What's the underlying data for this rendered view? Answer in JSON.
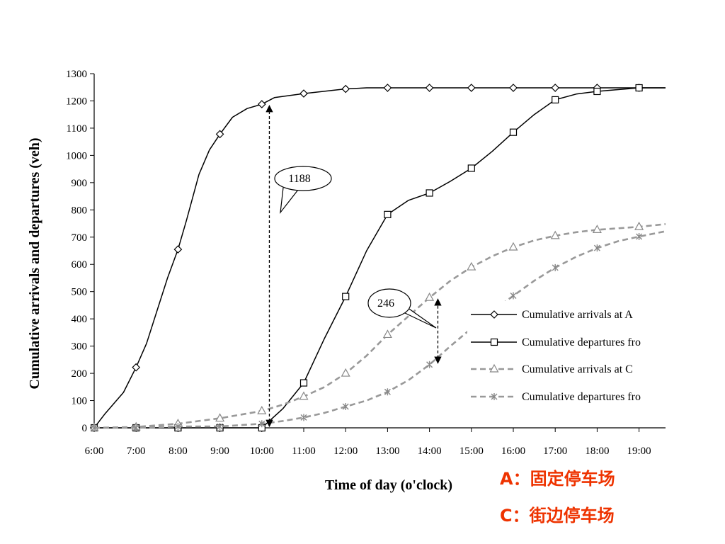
{
  "chart_data": {
    "type": "line",
    "title": "",
    "xlabel": "Time of day (o'clock)",
    "ylabel": "Cumulative arrivals and departures (veh)",
    "x": [
      "6:00",
      "7:00",
      "8:00",
      "9:00",
      "10:00",
      "11:00",
      "12:00",
      "13:00",
      "14:00",
      "15:00",
      "16:00",
      "17:00",
      "18:00",
      "19:00"
    ],
    "xlim": [
      6,
      19.65
    ],
    "ylim": [
      0,
      1300
    ],
    "yticks": [
      0,
      100,
      200,
      300,
      400,
      500,
      600,
      700,
      800,
      900,
      1000,
      1100,
      1200,
      1300
    ],
    "grid": false,
    "legend_position": "right",
    "series": [
      {
        "name": "Cumulative arrivals at A",
        "color": "#000000",
        "dash": "solid",
        "marker": "diamond",
        "markers": [
          [
            6,
            0
          ],
          [
            7,
            222
          ],
          [
            8,
            655
          ],
          [
            9,
            1078
          ],
          [
            10,
            1188
          ],
          [
            11,
            1227
          ],
          [
            12,
            1244
          ],
          [
            13,
            1248
          ],
          [
            14,
            1248
          ],
          [
            15,
            1248
          ],
          [
            16,
            1248
          ],
          [
            17,
            1248
          ],
          [
            18,
            1248
          ],
          [
            19,
            1248
          ]
        ],
        "curve": [
          [
            6,
            0
          ],
          [
            6.25,
            50
          ],
          [
            6.7,
            130
          ],
          [
            7,
            222
          ],
          [
            7.25,
            310
          ],
          [
            7.5,
            430
          ],
          [
            7.75,
            550
          ],
          [
            8,
            655
          ],
          [
            8.2,
            760
          ],
          [
            8.5,
            930
          ],
          [
            8.75,
            1020
          ],
          [
            9,
            1078
          ],
          [
            9.3,
            1140
          ],
          [
            9.65,
            1172
          ],
          [
            10,
            1188
          ],
          [
            10.3,
            1212
          ],
          [
            11,
            1227
          ],
          [
            12,
            1244
          ],
          [
            12.5,
            1248
          ],
          [
            19.65,
            1248
          ]
        ]
      },
      {
        "name": "Cumulative departures fro",
        "color": "#000000",
        "dash": "solid",
        "marker": "square",
        "markers": [
          [
            6,
            0
          ],
          [
            7,
            0
          ],
          [
            8,
            0
          ],
          [
            9,
            0
          ],
          [
            10,
            0
          ],
          [
            11,
            165
          ],
          [
            12,
            482
          ],
          [
            13,
            783
          ],
          [
            14,
            862
          ],
          [
            15,
            953
          ],
          [
            16,
            1085
          ],
          [
            17,
            1204
          ],
          [
            18,
            1235
          ],
          [
            19,
            1248
          ]
        ],
        "curve": [
          [
            6,
            0
          ],
          [
            10,
            0
          ],
          [
            10.5,
            70
          ],
          [
            11,
            165
          ],
          [
            11.5,
            330
          ],
          [
            12,
            482
          ],
          [
            12.5,
            650
          ],
          [
            13,
            783
          ],
          [
            13.5,
            835
          ],
          [
            14,
            862
          ],
          [
            14.5,
            905
          ],
          [
            15,
            953
          ],
          [
            15.5,
            1015
          ],
          [
            16,
            1085
          ],
          [
            16.5,
            1150
          ],
          [
            17,
            1204
          ],
          [
            17.5,
            1225
          ],
          [
            18,
            1235
          ],
          [
            19,
            1248
          ],
          [
            19.65,
            1248
          ]
        ]
      },
      {
        "name": "Cumulative arrivals at C",
        "color": "#999999",
        "dash": "dashed",
        "marker": "triangle",
        "markers": [
          [
            6,
            0
          ],
          [
            7,
            3
          ],
          [
            8,
            15
          ],
          [
            9,
            35
          ],
          [
            10,
            62
          ],
          [
            11,
            115
          ],
          [
            12,
            200
          ],
          [
            13,
            342
          ],
          [
            14,
            478
          ],
          [
            15,
            590
          ],
          [
            16,
            663
          ],
          [
            17,
            705
          ],
          [
            18,
            727
          ],
          [
            19,
            738
          ]
        ],
        "curve": [
          [
            6,
            0
          ],
          [
            7,
            3
          ],
          [
            8,
            15
          ],
          [
            9,
            35
          ],
          [
            10,
            62
          ],
          [
            10.5,
            85
          ],
          [
            11,
            115
          ],
          [
            11.5,
            150
          ],
          [
            12,
            200
          ],
          [
            12.5,
            265
          ],
          [
            13,
            342
          ],
          [
            13.5,
            410
          ],
          [
            14,
            478
          ],
          [
            14.5,
            540
          ],
          [
            15,
            590
          ],
          [
            15.5,
            630
          ],
          [
            16,
            663
          ],
          [
            16.5,
            688
          ],
          [
            17,
            705
          ],
          [
            17.5,
            718
          ],
          [
            18,
            727
          ],
          [
            19,
            738
          ],
          [
            19.65,
            748
          ]
        ]
      },
      {
        "name": "Cumulative departures fro",
        "color": "#999999",
        "dash": "dashed",
        "marker": "star",
        "markers": [
          [
            6,
            0
          ],
          [
            7,
            0
          ],
          [
            8,
            5
          ],
          [
            9,
            5
          ],
          [
            10,
            15
          ],
          [
            11,
            38
          ],
          [
            12,
            78
          ],
          [
            13,
            132
          ],
          [
            14,
            232
          ],
          [
            15,
            365
          ],
          [
            16,
            485
          ],
          [
            17,
            588
          ],
          [
            18,
            660
          ],
          [
            19,
            702
          ]
        ],
        "curve": [
          [
            6,
            0
          ],
          [
            7,
            0
          ],
          [
            8,
            5
          ],
          [
            9,
            5
          ],
          [
            10,
            15
          ],
          [
            10.5,
            25
          ],
          [
            11,
            38
          ],
          [
            11.5,
            55
          ],
          [
            12,
            78
          ],
          [
            12.5,
            100
          ],
          [
            13,
            132
          ],
          [
            13.5,
            175
          ],
          [
            14,
            232
          ],
          [
            14.5,
            300
          ],
          [
            15,
            365
          ],
          [
            15.5,
            428
          ],
          [
            16,
            485
          ],
          [
            16.5,
            540
          ],
          [
            17,
            588
          ],
          [
            17.5,
            628
          ],
          [
            18,
            660
          ],
          [
            18.5,
            685
          ],
          [
            19,
            702
          ],
          [
            19.65,
            722
          ]
        ]
      }
    ],
    "annotations": [
      {
        "label": "1188",
        "x": 10.18,
        "y_from": 0,
        "y_to": 1188
      },
      {
        "label": "246",
        "x": 14.2,
        "y_from": 232,
        "y_to": 478
      }
    ]
  },
  "notes": [
    {
      "text": "A：固定停车场",
      "color": "#ee3300"
    },
    {
      "text": "C：街边停车场",
      "color": "#ee3300"
    }
  ]
}
